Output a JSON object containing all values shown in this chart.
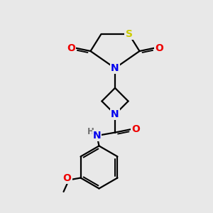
{
  "background_color": "#e8e8e8",
  "bond_color": "#000000",
  "atom_colors": {
    "S": "#cccc00",
    "N": "#0000ee",
    "O": "#ee0000",
    "C": "#000000",
    "H": "#707070"
  },
  "figsize": [
    3.0,
    3.0
  ],
  "dpi": 100,
  "xlim": [
    0,
    10
  ],
  "ylim": [
    0,
    10
  ]
}
